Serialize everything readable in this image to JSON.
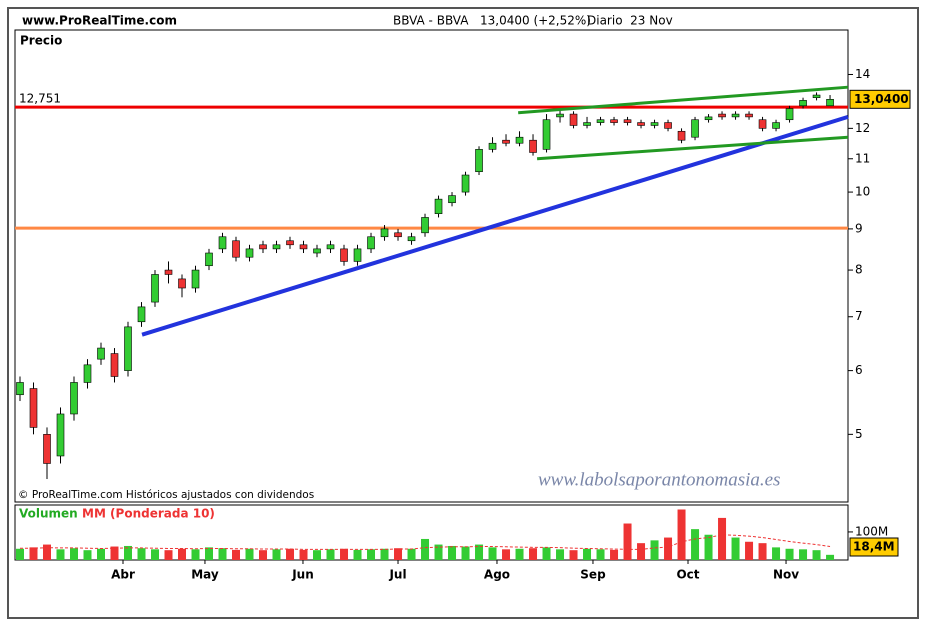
{
  "chart_data": {
    "type": "candlestick",
    "site": "www.ProRealTime.com",
    "symbol": "BBVA - BBVA",
    "quote": "13,0400 (+2,52%)",
    "period": "Diario  23 Nov",
    "y_label": "Precio",
    "copyright": "© ProRealTime.com Históricos ajustados con dividendos",
    "watermark": "www.labolsaporantonomasia.es",
    "log_scale": true,
    "ylim": [
      4.12,
      15.9
    ],
    "yticks": [
      5,
      6,
      7,
      8,
      9,
      10,
      11,
      12,
      14
    ],
    "xlim": [
      -0.37,
      61.33
    ],
    "xticks": [
      {
        "value": 7.63,
        "label": "Abr"
      },
      {
        "value": 13.7,
        "label": "May"
      },
      {
        "value": 20.96,
        "label": "Jun"
      },
      {
        "value": 28,
        "label": "Jul"
      },
      {
        "value": 35.33,
        "label": "Ago"
      },
      {
        "value": 42.44,
        "label": "Sep"
      },
      {
        "value": 49.48,
        "label": "Oct"
      },
      {
        "value": 56.74,
        "label": "Nov"
      }
    ],
    "up_color": "#33cc33",
    "down_color": "#ee3333",
    "open": [
      5.6,
      5.7,
      5.0,
      4.7,
      5.3,
      5.8,
      6.2,
      6.3,
      6.0,
      6.9,
      7.3,
      8.0,
      7.8,
      7.6,
      8.1,
      8.5,
      8.7,
      8.3,
      8.6,
      8.5,
      8.7,
      8.6,
      8.4,
      8.5,
      8.5,
      8.2,
      8.5,
      8.8,
      8.9,
      8.7,
      8.9,
      9.4,
      9.7,
      10.0,
      10.6,
      11.3,
      11.6,
      11.5,
      11.6,
      11.3,
      12.4,
      12.5,
      12.1,
      12.2,
      12.3,
      12.3,
      12.2,
      12.1,
      12.2,
      11.9,
      11.7,
      12.3,
      12.5,
      12.4,
      12.5,
      12.3,
      12.0,
      12.3,
      12.8,
      13.1,
      12.8
    ],
    "high": [
      5.9,
      5.8,
      5.1,
      5.4,
      5.9,
      6.2,
      6.5,
      6.4,
      6.9,
      7.3,
      8.0,
      8.2,
      7.9,
      8.1,
      8.5,
      8.9,
      8.8,
      8.6,
      8.7,
      8.7,
      8.8,
      8.7,
      8.6,
      8.7,
      8.6,
      8.6,
      8.9,
      9.1,
      9.0,
      8.9,
      9.4,
      9.9,
      10.0,
      10.6,
      11.4,
      11.7,
      11.8,
      11.9,
      11.8,
      12.5,
      12.7,
      12.6,
      12.4,
      12.4,
      12.4,
      12.4,
      12.3,
      12.3,
      12.3,
      12.0,
      12.4,
      12.5,
      12.6,
      12.6,
      12.6,
      12.4,
      12.3,
      12.8,
      13.1,
      13.3,
      13.2
    ],
    "low": [
      5.5,
      5.0,
      4.4,
      4.6,
      5.2,
      5.7,
      6.1,
      5.8,
      5.9,
      6.8,
      7.2,
      7.7,
      7.4,
      7.5,
      8.0,
      8.4,
      8.2,
      8.2,
      8.4,
      8.4,
      8.5,
      8.4,
      8.3,
      8.4,
      8.1,
      8.1,
      8.4,
      8.7,
      8.7,
      8.6,
      8.8,
      9.3,
      9.6,
      9.9,
      10.5,
      11.2,
      11.4,
      11.4,
      11.1,
      11.2,
      12.2,
      12.0,
      12.0,
      12.1,
      12.1,
      12.1,
      12.0,
      12.0,
      11.9,
      11.5,
      11.6,
      12.2,
      12.3,
      12.3,
      12.3,
      11.9,
      11.9,
      12.2,
      12.7,
      13.0,
      12.8
    ],
    "close": [
      5.8,
      5.1,
      4.6,
      5.3,
      5.8,
      6.1,
      6.4,
      5.9,
      6.8,
      7.2,
      7.9,
      7.9,
      7.6,
      8.0,
      8.4,
      8.8,
      8.3,
      8.5,
      8.5,
      8.6,
      8.6,
      8.5,
      8.5,
      8.6,
      8.2,
      8.5,
      8.8,
      9.0,
      8.8,
      8.8,
      9.3,
      9.8,
      9.9,
      10.5,
      11.3,
      11.5,
      11.5,
      11.7,
      11.2,
      12.3,
      12.5,
      12.1,
      12.2,
      12.3,
      12.2,
      12.2,
      12.1,
      12.2,
      12.0,
      11.6,
      12.3,
      12.4,
      12.4,
      12.5,
      12.4,
      12.0,
      12.2,
      12.7,
      13.0,
      13.2,
      13.04
    ],
    "last_price": {
      "value": 13.04,
      "label": "13,0400",
      "color": "#ffcc00"
    },
    "hlines": [
      {
        "value": 12.751,
        "label": "12,751",
        "color": "#ee0000"
      },
      {
        "value": 9.02,
        "color": "#ff8844"
      }
    ],
    "trendlines": [
      {
        "color": "#2233dd",
        "x": [
          9.04,
          61.33
        ],
        "y": [
          6.65,
          12.4
        ]
      },
      {
        "color": "#229922",
        "x": [
          36.9,
          61.33
        ],
        "y": [
          12.55,
          13.5
        ]
      },
      {
        "color": "#229922",
        "x": [
          38.3,
          61.33
        ],
        "y": [
          11.0,
          11.7
        ]
      }
    ],
    "volume": {
      "label": "Volumen",
      "ylim": [
        0,
        196
      ],
      "yticks": [
        {
          "value": 100,
          "label": "100M"
        }
      ],
      "values": [
        40,
        45,
        55,
        38,
        42,
        35,
        40,
        48,
        50,
        42,
        38,
        35,
        40,
        38,
        45,
        42,
        36,
        40,
        35,
        38,
        40,
        36,
        35,
        38,
        40,
        36,
        38,
        40,
        42,
        40,
        75,
        55,
        50,
        48,
        55,
        45,
        38,
        40,
        42,
        45,
        38,
        35,
        40,
        38,
        36,
        130,
        60,
        70,
        80,
        180,
        110,
        90,
        150,
        80,
        65,
        60,
        45,
        40,
        38,
        35,
        18.4
      ],
      "last_label": "18,4M",
      "ma": {
        "name": "MM (Ponderada 10)",
        "color": "#ee3333",
        "values": [
          42,
          42,
          44,
          43,
          43,
          42,
          41,
          42,
          43,
          43,
          42,
          41,
          41,
          40,
          41,
          41,
          40,
          40,
          39,
          39,
          39,
          38,
          38,
          38,
          38,
          38,
          38,
          38,
          39,
          39,
          44,
          46,
          47,
          47,
          48,
          48,
          47,
          46,
          45,
          45,
          44,
          42,
          41,
          40,
          39,
          38,
          38,
          43,
          46,
          65,
          75,
          80,
          90,
          88,
          85,
          80,
          73,
          66,
          60,
          55,
          48
        ]
      }
    }
  }
}
